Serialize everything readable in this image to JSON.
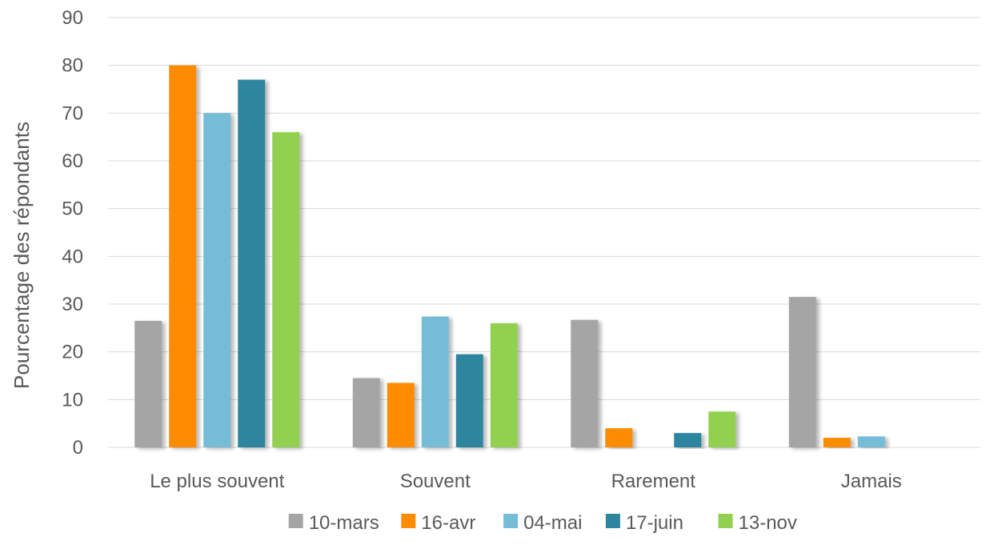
{
  "chart_data": {
    "type": "bar",
    "title": "",
    "xlabel": "",
    "ylabel": "Pourcentage des répondants",
    "ylim": [
      0,
      90
    ],
    "yticks": [
      0,
      10,
      20,
      30,
      40,
      50,
      60,
      70,
      80,
      90
    ],
    "grid": true,
    "legend_position": "bottom",
    "categories": [
      "Le plus souvent",
      "Souvent",
      "Rarement",
      "Jamais"
    ],
    "series": [
      {
        "name": "10-mars",
        "color": "#a5a5a5",
        "values": [
          26.5,
          14.5,
          26.7,
          31.5
        ]
      },
      {
        "name": "16-avr",
        "color": "#ff8c00",
        "values": [
          80,
          13.5,
          4,
          2
        ]
      },
      {
        "name": "04-mai",
        "color": "#75bdd6",
        "values": [
          70,
          27.4,
          0,
          2.3
        ]
      },
      {
        "name": "17-juin",
        "color": "#2e859e",
        "values": [
          77,
          19.5,
          3,
          0
        ]
      },
      {
        "name": "13-nov",
        "color": "#92d050",
        "values": [
          66,
          26,
          7.5,
          0
        ]
      }
    ]
  }
}
